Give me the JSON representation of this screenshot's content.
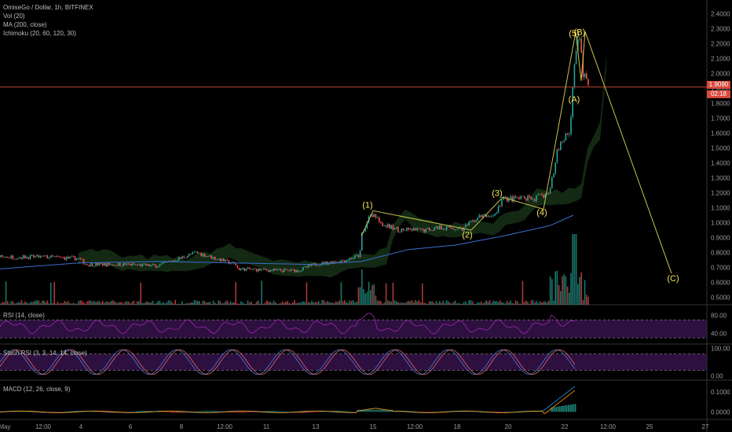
{
  "header": {
    "title": "OmiseGo / Dollar, 1h, BITFINEX",
    "vol": "Vol (20)",
    "ma": "MA (200, close)",
    "ichimoku": "Ichimoku (20, 60, 120, 30)"
  },
  "price_tag": {
    "value": "1.9090",
    "countdown": "02:18"
  },
  "colors": {
    "up": "#26a69a",
    "down": "#ef5350",
    "ma": "#3a6fd0",
    "wave": "#c9c24a",
    "price_line": "#d94a3c",
    "rsi": "#9c27b0"
  },
  "chart_data": [
    {
      "type": "candlestick",
      "title": "OmiseGo / Dollar, 1h, BITFINEX",
      "x_ticks": [
        "May",
        "12:00",
        "4",
        "6",
        "8",
        "12:00",
        "11",
        "13",
        "15",
        "12:00",
        "18",
        "20",
        "22",
        "12:00",
        "25",
        "27"
      ],
      "y_ticks": [
        "0.5000",
        "0.6000",
        "0.7000",
        "0.8000",
        "0.9000",
        "1.0000",
        "1.1000",
        "1.2000",
        "1.3000",
        "1.4000",
        "1.5000",
        "1.6000",
        "1.7000",
        "1.8000",
        "1.9000",
        "2.0000",
        "2.1000",
        "2.2000",
        "2.3000",
        "2.4000"
      ],
      "ylim": [
        0.45,
        2.45
      ],
      "last_price": 1.909,
      "price_path": [
        [
          0,
          0.77
        ],
        [
          60,
          0.77
        ],
        [
          100,
          0.76
        ],
        [
          110,
          0.72
        ],
        [
          160,
          0.72
        ],
        [
          200,
          0.71
        ],
        [
          250,
          0.8
        ],
        [
          300,
          0.72
        ],
        [
          303,
          0.69
        ],
        [
          350,
          0.68
        ],
        [
          380,
          0.68
        ],
        [
          400,
          0.72
        ],
        [
          440,
          0.75
        ],
        [
          458,
          0.78
        ],
        [
          460,
          0.92
        ],
        [
          470,
          1.03
        ],
        [
          475,
          1.06
        ],
        [
          490,
          0.98
        ],
        [
          510,
          0.95
        ],
        [
          540,
          0.95
        ],
        [
          560,
          0.97
        ],
        [
          590,
          0.96
        ],
        [
          610,
          1.04
        ],
        [
          630,
          1.05
        ],
        [
          640,
          1.16
        ],
        [
          660,
          1.16
        ],
        [
          680,
          1.16
        ],
        [
          700,
          1.2
        ],
        [
          710,
          1.5
        ],
        [
          726,
          1.62
        ],
        [
          730,
          1.97
        ],
        [
          733,
          2.12
        ],
        [
          736,
          2.2
        ],
        [
          738,
          2.24
        ],
        [
          742,
          2.0
        ],
        [
          748,
          1.93
        ],
        [
          750,
          1.91
        ]
      ],
      "ma200_path": [
        [
          0,
          0.69
        ],
        [
          100,
          0.73
        ],
        [
          200,
          0.74
        ],
        [
          300,
          0.73
        ],
        [
          400,
          0.72
        ],
        [
          460,
          0.74
        ],
        [
          520,
          0.82
        ],
        [
          580,
          0.85
        ],
        [
          640,
          0.91
        ],
        [
          700,
          0.98
        ],
        [
          730,
          1.05
        ]
      ],
      "wave_labels": [
        {
          "text": "(1)",
          "price": 1.12
        },
        {
          "text": "(2)",
          "price": 0.92
        },
        {
          "text": "(3)",
          "price": 1.2
        },
        {
          "text": "(4)",
          "price": 1.07
        },
        {
          "text": "(5)",
          "price": 2.27
        },
        {
          "text": "(B)",
          "price": 2.28
        },
        {
          "text": "(A)",
          "price": 1.83
        },
        {
          "text": "(C)",
          "price": 0.63
        }
      ],
      "wave_path": [
        [
          460,
          0.91
        ],
        [
          475,
          1.08
        ],
        [
          600,
          0.95
        ],
        [
          640,
          1.17
        ],
        [
          692,
          1.09
        ],
        [
          733,
          2.28
        ],
        [
          740,
          1.95
        ],
        [
          745,
          2.28
        ],
        [
          855,
          0.66
        ]
      ]
    },
    {
      "type": "line",
      "title": "RSI (14, close)",
      "y_ticks": [
        "40.00",
        "80.00"
      ],
      "levels": [
        70,
        30
      ],
      "ylim": [
        20,
        100
      ]
    },
    {
      "type": "line",
      "title": "Stoch RSI (3, 3, 14, 14, close)",
      "y_ticks": [
        "0.00",
        "100.00"
      ],
      "levels": [
        80,
        20
      ],
      "ylim": [
        -10,
        110
      ]
    },
    {
      "type": "bar",
      "title": "MACD (12, 26, close, 9)",
      "y_ticks": [
        "0.0000",
        "0.1000"
      ]
    }
  ]
}
